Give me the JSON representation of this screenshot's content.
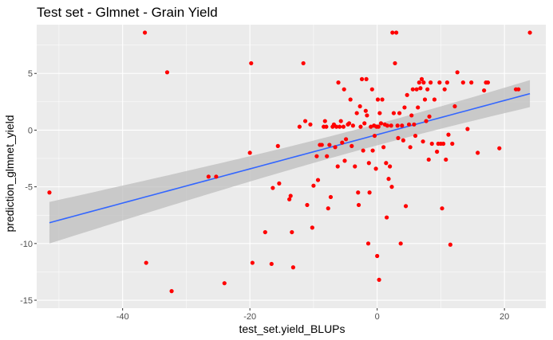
{
  "chart_data": {
    "type": "scatter",
    "title": "Test set - Glmnet - Grain Yield",
    "xlabel": "test_set.yield_BLUPs",
    "ylabel": "prediction_glmnet_yield",
    "xlim": [
      -53.5,
      26.5
    ],
    "ylim": [
      -15.7,
      9.3
    ],
    "x_ticks": [
      -40,
      -20,
      0,
      20
    ],
    "x_tick_labels": [
      "-40",
      "-20",
      "0",
      "20"
    ],
    "y_ticks": [
      -15,
      -10,
      -5,
      0,
      5
    ],
    "y_tick_labels": [
      "-15",
      "-10",
      "-5",
      "0",
      "5"
    ],
    "grid": true,
    "panel_background": "#ebebeb",
    "grid_color": "#ffffff",
    "point_color": "#ff0000",
    "line_color": "#3366ff",
    "ribbon_color": "#bdbdbd",
    "points": [
      [
        -51.5,
        -5.5
      ],
      [
        -36.5,
        8.6
      ],
      [
        -36.3,
        -11.7
      ],
      [
        -33,
        5.1
      ],
      [
        -32.3,
        -14.2
      ],
      [
        -26.5,
        -4.1
      ],
      [
        -25.3,
        -4.1
      ],
      [
        -24,
        -13.5
      ],
      [
        -20,
        -2
      ],
      [
        -19.8,
        5.9
      ],
      [
        -19.6,
        -11.7
      ],
      [
        -17.6,
        -9
      ],
      [
        -16.6,
        -11.8
      ],
      [
        -16.4,
        -5.1
      ],
      [
        -15.6,
        -1.4
      ],
      [
        -15.4,
        -4.7
      ],
      [
        -13.8,
        -6.1
      ],
      [
        -13.6,
        -5.8
      ],
      [
        -13.4,
        -9
      ],
      [
        -13.2,
        -12.1
      ],
      [
        -12.2,
        0.3
      ],
      [
        -11.6,
        5.9
      ],
      [
        -11.3,
        0.8
      ],
      [
        -11,
        -6.6
      ],
      [
        -10.5,
        0.5
      ],
      [
        -10.2,
        -8.6
      ],
      [
        -10,
        -4.9
      ],
      [
        -9.5,
        -2.3
      ],
      [
        -9.3,
        -4.4
      ],
      [
        -9,
        -1.3
      ],
      [
        -8.7,
        -1.3
      ],
      [
        -8.4,
        0.3
      ],
      [
        -8.2,
        0.8
      ],
      [
        -8,
        0.3
      ],
      [
        -7.9,
        -2.3
      ],
      [
        -7.7,
        -6.9
      ],
      [
        -7.5,
        -1.3
      ],
      [
        -7.3,
        -5.9
      ],
      [
        -7,
        0.3
      ],
      [
        -6.8,
        0.5
      ],
      [
        -6.6,
        -1.5
      ],
      [
        -6.4,
        0.3
      ],
      [
        -6.2,
        -3.2
      ],
      [
        -6.1,
        4.2
      ],
      [
        -5.9,
        0.3
      ],
      [
        -5.7,
        0.8
      ],
      [
        -5.5,
        -1.1
      ],
      [
        -5.3,
        0.3
      ],
      [
        -5.2,
        3.6
      ],
      [
        -5.1,
        -2.7
      ],
      [
        -4.9,
        -0.8
      ],
      [
        -4.6,
        0.5
      ],
      [
        -4.4,
        0.6
      ],
      [
        -4.2,
        2.7
      ],
      [
        -4,
        -1.4
      ],
      [
        -3.8,
        0.4
      ],
      [
        -3.5,
        -3.2
      ],
      [
        -3.2,
        1.5
      ],
      [
        -3,
        -5.5
      ],
      [
        -2.9,
        -6.6
      ],
      [
        -2.7,
        2.1
      ],
      [
        -2.6,
        0.3
      ],
      [
        -2.4,
        4.5
      ],
      [
        -2.2,
        -1.8
      ],
      [
        -2,
        0.6
      ],
      [
        -1.8,
        1.7
      ],
      [
        -1.7,
        4.5
      ],
      [
        -1.6,
        1.3
      ],
      [
        -1.4,
        -10
      ],
      [
        -1.3,
        -2.9
      ],
      [
        -1.2,
        -5.5
      ],
      [
        -1,
        0.3
      ],
      [
        -0.8,
        3.6
      ],
      [
        -0.7,
        -1.8
      ],
      [
        -0.5,
        0.4
      ],
      [
        -0.4,
        -0.5
      ],
      [
        -0.2,
        -3.4
      ],
      [
        -0.1,
        0.3
      ],
      [
        0,
        -11.1
      ],
      [
        0.1,
        2.7
      ],
      [
        0.2,
        0.3
      ],
      [
        0.3,
        -13.2
      ],
      [
        0.4,
        1.5
      ],
      [
        0.6,
        0.6
      ],
      [
        0.8,
        2.7
      ],
      [
        1,
        -1.5
      ],
      [
        1.2,
        0.5
      ],
      [
        1.4,
        -2.9
      ],
      [
        1.5,
        -7.7
      ],
      [
        1.6,
        0.4
      ],
      [
        1.8,
        -4.3
      ],
      [
        2,
        -3.2
      ],
      [
        2.2,
        0.4
      ],
      [
        2.3,
        -5
      ],
      [
        2.4,
        8.6
      ],
      [
        2.6,
        1.5
      ],
      [
        2.8,
        5.9
      ],
      [
        3,
        8.6
      ],
      [
        3.2,
        0.4
      ],
      [
        3.3,
        -0.7
      ],
      [
        3.5,
        1.5
      ],
      [
        3.7,
        -10
      ],
      [
        3.9,
        0.4
      ],
      [
        4.1,
        -0.9
      ],
      [
        4.3,
        2
      ],
      [
        4.5,
        -6.7
      ],
      [
        4.7,
        3.1
      ],
      [
        5,
        0.5
      ],
      [
        5.2,
        -1.5
      ],
      [
        5.4,
        1.3
      ],
      [
        5.6,
        3.6
      ],
      [
        5.8,
        0.5
      ],
      [
        6,
        -0.5
      ],
      [
        6.2,
        3.6
      ],
      [
        6.4,
        2
      ],
      [
        6.6,
        4.2
      ],
      [
        6.8,
        3.7
      ],
      [
        7,
        4.5
      ],
      [
        7.2,
        -1
      ],
      [
        7.3,
        4.2
      ],
      [
        7.5,
        2.7
      ],
      [
        7.7,
        0.8
      ],
      [
        7.9,
        3.6
      ],
      [
        8.1,
        -2.6
      ],
      [
        8.2,
        1.2
      ],
      [
        8.4,
        4.2
      ],
      [
        8.6,
        -1.2
      ],
      [
        9,
        2.7
      ],
      [
        9.4,
        -1.9
      ],
      [
        9.6,
        -1.2
      ],
      [
        9.8,
        4.2
      ],
      [
        10,
        -1.2
      ],
      [
        10.2,
        -6.9
      ],
      [
        10.4,
        -1.2
      ],
      [
        10.6,
        3.6
      ],
      [
        10.8,
        -2.6
      ],
      [
        11,
        4.2
      ],
      [
        11.2,
        -0.4
      ],
      [
        11.5,
        -10.1
      ],
      [
        11.8,
        -1.2
      ],
      [
        12.2,
        2.1
      ],
      [
        12.6,
        5.1
      ],
      [
        13.5,
        4.2
      ],
      [
        14.2,
        0.1
      ],
      [
        14.8,
        4.2
      ],
      [
        15.8,
        -2
      ],
      [
        16.8,
        3.5
      ],
      [
        17.1,
        4.2
      ],
      [
        17.4,
        4.2
      ],
      [
        19.2,
        -1.6
      ],
      [
        21.8,
        3.6
      ],
      [
        22.2,
        3.6
      ],
      [
        24,
        8.6
      ]
    ],
    "smooth": {
      "method": "linear fit",
      "x_range": [
        -51.5,
        24
      ],
      "intercept": -0.4,
      "slope": 0.1508,
      "se_at_mean": 0.48,
      "mean_x": 0,
      "se_growth": 0.000242
    }
  }
}
